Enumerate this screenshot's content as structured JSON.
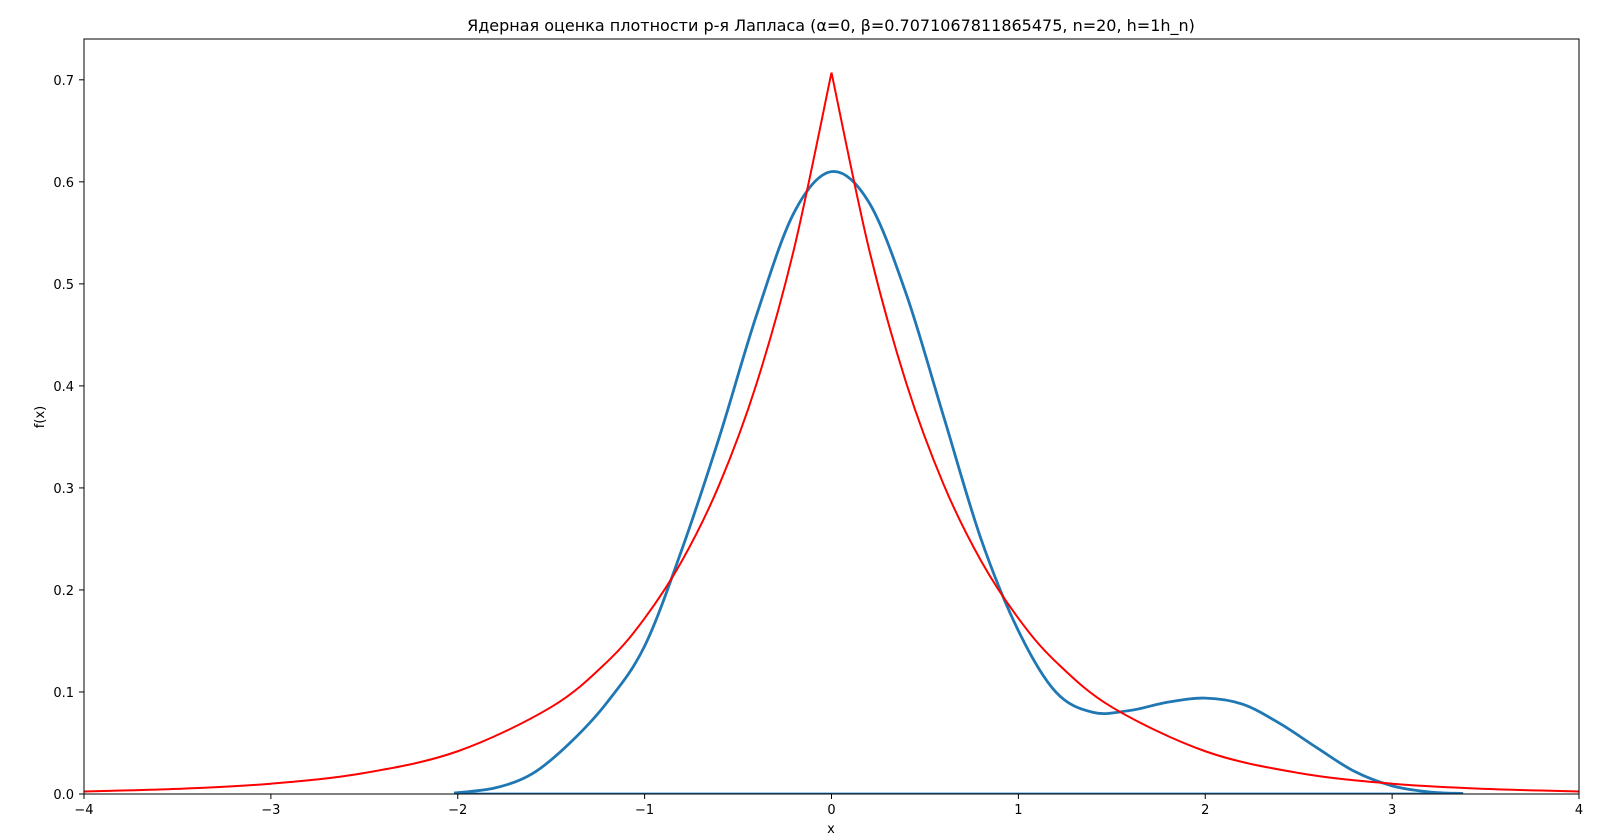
{
  "chart_data": {
    "type": "line",
    "title": "Ядерная оценка плотности р-я Лапласа (α=0, β=0.7071067811865475, n=20, h=1h_n)",
    "xlabel": "x",
    "ylabel": "f(x)",
    "xlim": [
      -4,
      4
    ],
    "ylim": [
      0,
      0.74
    ],
    "xticks": [
      -4,
      -3,
      -2,
      -1,
      0,
      1,
      2,
      3,
      4
    ],
    "xtick_labels": [
      "−4",
      "−3",
      "−2",
      "−1",
      "0",
      "1",
      "2",
      "3",
      "4"
    ],
    "yticks": [
      0.0,
      0.1,
      0.2,
      0.3,
      0.4,
      0.5,
      0.6,
      0.7
    ],
    "ytick_labels": [
      "0.0",
      "0.1",
      "0.2",
      "0.3",
      "0.4",
      "0.5",
      "0.6",
      "0.7"
    ],
    "grid": false,
    "series": [
      {
        "color": "#1f77b4",
        "x": [
          -2.02,
          -1.8,
          -1.6,
          -1.4,
          -1.2,
          -1.0,
          -0.8,
          -0.6,
          -0.4,
          -0.2,
          0.0,
          0.2,
          0.4,
          0.6,
          0.8,
          1.0,
          1.2,
          1.4,
          1.6,
          1.8,
          2.0,
          2.2,
          2.4,
          2.6,
          2.8,
          3.0,
          3.2,
          3.38
        ],
        "y": [
          0.001,
          0.006,
          0.02,
          0.05,
          0.09,
          0.145,
          0.24,
          0.35,
          0.47,
          0.57,
          0.61,
          0.58,
          0.49,
          0.37,
          0.25,
          0.16,
          0.1,
          0.08,
          0.082,
          0.09,
          0.094,
          0.088,
          0.069,
          0.045,
          0.022,
          0.008,
          0.002,
          0.0005
        ]
      },
      {
        "color": "#1f77b4",
        "x": [
          -2.02,
          3.38
        ],
        "y": [
          0.0,
          0.0
        ]
      },
      {
        "color": "#ff0000",
        "x": [
          -4.0,
          -3.5,
          -3.0,
          -2.5,
          -2.0,
          -1.5,
          -1.2,
          -1.0,
          -0.8,
          -0.6,
          -0.4,
          -0.2,
          0.0,
          0.2,
          0.4,
          0.6,
          0.8,
          1.0,
          1.2,
          1.5,
          2.0,
          2.5,
          3.0,
          3.5,
          4.0
        ],
        "y": [
          0.0025,
          0.005,
          0.0101,
          0.0206,
          0.0419,
          0.0852,
          0.1297,
          0.1722,
          0.2286,
          0.3034,
          0.4028,
          0.5347,
          0.7071,
          0.5347,
          0.4028,
          0.3034,
          0.2286,
          0.1722,
          0.1297,
          0.0852,
          0.0419,
          0.0206,
          0.0101,
          0.005,
          0.0025
        ]
      }
    ]
  }
}
